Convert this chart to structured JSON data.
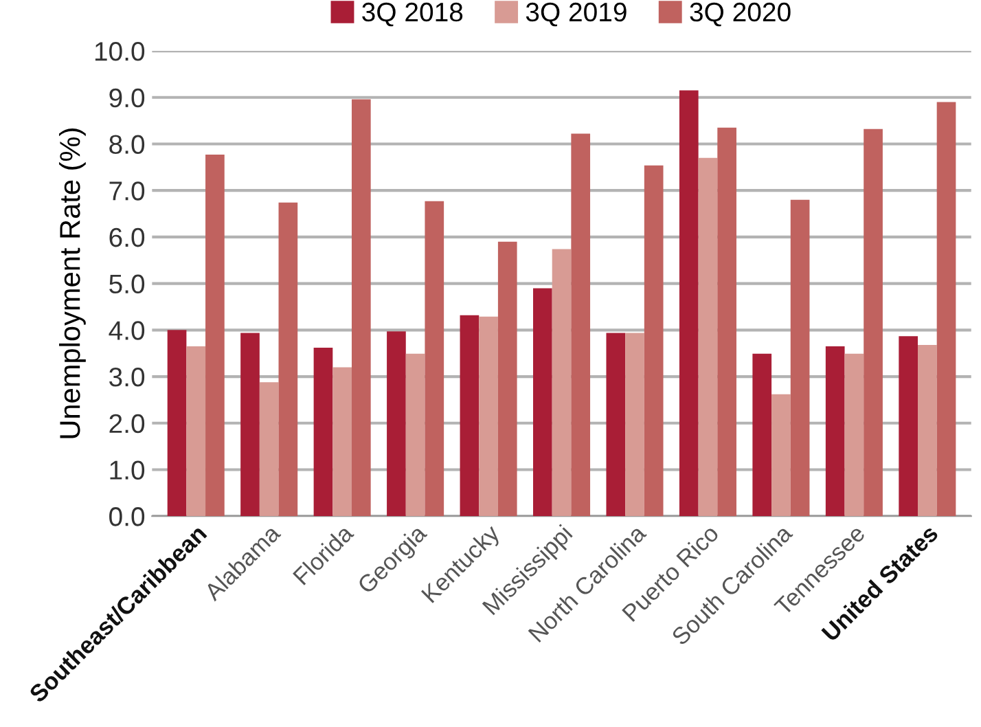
{
  "chart_data": {
    "type": "bar",
    "ylabel": "Unemployment Rate (%)",
    "categories": [
      "Southeast/Caribbean",
      "Alabama",
      "Florida",
      "Georgia",
      "Kentucky",
      "Mississippi",
      "North Carolina",
      "Puerto Rico",
      "South Carolina",
      "Tennessee",
      "United States"
    ],
    "series": [
      {
        "name": "3Q 2018",
        "color": "#a91e36",
        "values": [
          4.0,
          3.94,
          3.62,
          3.97,
          4.32,
          4.9,
          3.94,
          9.15,
          3.49,
          3.65,
          3.87
        ]
      },
      {
        "name": "3Q 2019",
        "color": "#d89b94",
        "values": [
          3.65,
          2.88,
          3.2,
          3.49,
          4.29,
          5.74,
          3.94,
          7.7,
          2.62,
          3.49,
          3.68
        ]
      },
      {
        "name": "3Q 2020",
        "color": "#c0625f",
        "values": [
          7.77,
          6.74,
          8.96,
          6.77,
          5.9,
          8.22,
          7.54,
          8.35,
          6.8,
          8.32,
          8.9
        ]
      }
    ],
    "ylim": [
      0,
      10
    ],
    "yticks": [
      {
        "value": 0,
        "label": "0.0"
      },
      {
        "value": 1,
        "label": "1.0"
      },
      {
        "value": 2,
        "label": "2.0"
      },
      {
        "value": 3,
        "label": "3.0"
      },
      {
        "value": 4,
        "label": "4.0"
      },
      {
        "value": 5,
        "label": "5.0"
      },
      {
        "value": 6,
        "label": "6.0"
      },
      {
        "value": 7,
        "label": "7.0"
      },
      {
        "value": 8,
        "label": "8.0"
      },
      {
        "value": 9,
        "label": "9.0"
      },
      {
        "value": 10,
        "label": "10.0"
      }
    ],
    "grid": "y",
    "legend": "top"
  }
}
